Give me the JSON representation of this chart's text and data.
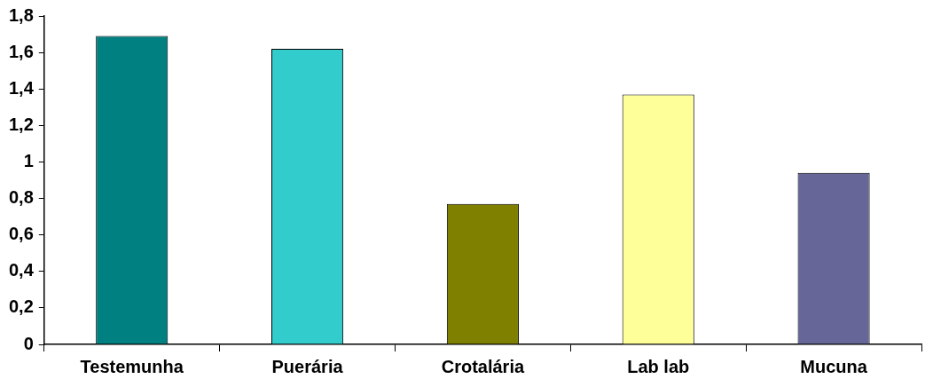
{
  "chart_data": {
    "type": "bar",
    "categories": [
      "Testemunha",
      "Puerária",
      "Crotalária",
      "Lab lab",
      "Mucuna"
    ],
    "values": [
      1.69,
      1.62,
      0.77,
      1.37,
      0.94
    ],
    "colors": [
      "#008080",
      "#33cccc",
      "#808000",
      "#ffff99",
      "#666699"
    ],
    "ylim": [
      0,
      1.8
    ],
    "yticks": [
      0,
      {
        "value": 0.2,
        "label": "0,2"
      },
      {
        "value": 0.4,
        "label": "0,4"
      },
      {
        "value": 0.6,
        "label": "0,6"
      },
      {
        "value": 0.8,
        "label": "0,8"
      },
      1,
      {
        "value": 1.2,
        "label": "1,2"
      },
      {
        "value": 1.4,
        "label": "1,4"
      },
      {
        "value": 1.6,
        "label": "1,6"
      },
      {
        "value": 1.8,
        "label": "1,8"
      }
    ],
    "grid": false,
    "legend": false
  }
}
